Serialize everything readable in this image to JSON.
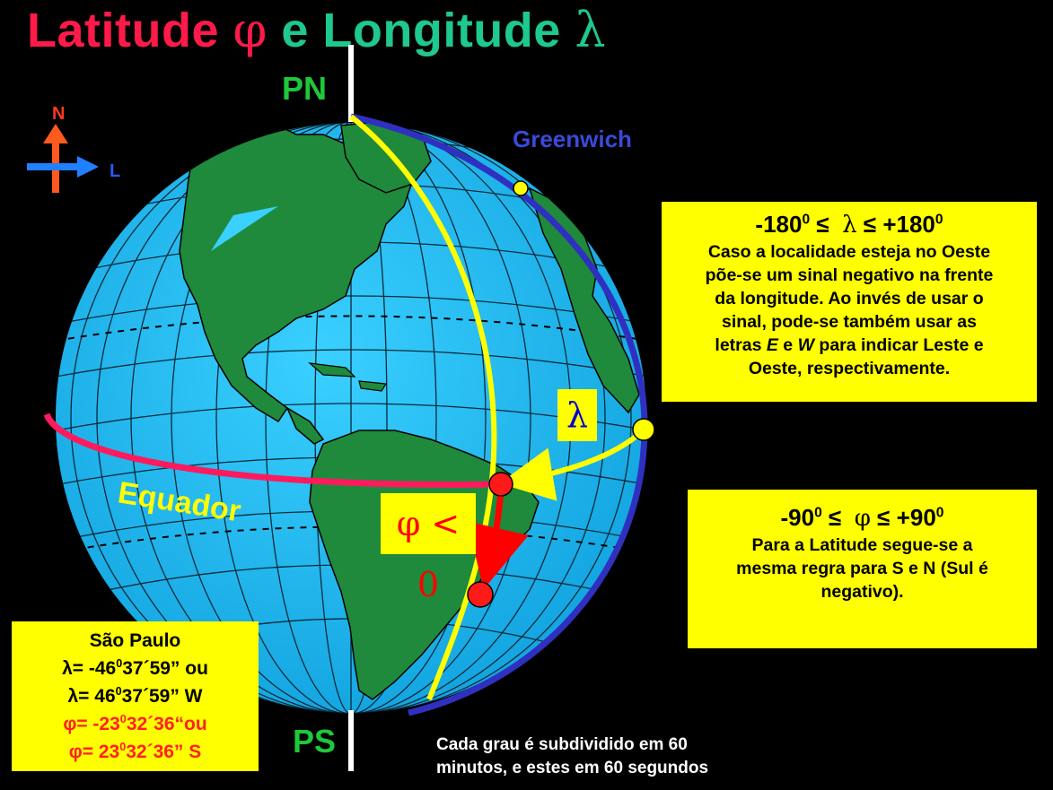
{
  "title": {
    "latitude": "Latitude",
    "phi": "φ",
    "e": " e ",
    "longitude": "Longitude",
    "lambda": "λ"
  },
  "labels": {
    "pn": "PN",
    "ps": "PS",
    "greenwich": "Greenwich",
    "equador": "Equador",
    "north": "N",
    "east": "L"
  },
  "lambda_box": "λ",
  "phi_box": "φ < 0",
  "longitude_box": {
    "range_lower": "-180",
    "range_upper": "+180",
    "range_sup": "0",
    "range_symbol": "λ",
    "line1": "Caso a localidade esteja no Oeste",
    "line2": "põe-se um sinal negativo na frente",
    "line3": "da longitude. Ao invés de usar o",
    "line4": "sinal, pode-se também usar as",
    "line5_pre": "letras ",
    "line5_e": "E",
    "line5_mid": " e ",
    "line5_w": "W",
    "line5_post": " para indicar Leste e",
    "line6": "Oeste, respectivamente."
  },
  "latitude_box": {
    "range_lower": "-90",
    "range_upper": "+90",
    "range_sup": "0",
    "range_symbol": "φ",
    "line1": "Para a Latitude segue-se a",
    "line2": "mesma regra para S e N (Sul é",
    "line3": "negativo)."
  },
  "sao_paulo_box": {
    "city": "São Paulo",
    "lam1_prefix": "λ= -46",
    "lam1_suffix": "37´59” ou",
    "lam2_prefix": "λ= 46",
    "lam2_suffix": "37´59” W",
    "phi1_prefix": "φ= -23",
    "phi1_suffix": "32´36“ou",
    "phi2_prefix": "φ= 23",
    "phi2_suffix": "32´36” S",
    "deg": "0"
  },
  "note": {
    "line1": "Cada grau é subdividido em 60",
    "line2": "minutos, e estes em 60 segundos"
  },
  "colors": {
    "background": "#000000",
    "ocean": "#19b4ee",
    "land": "#1f8a3c",
    "equator": "#ff1a5e",
    "greenwich": "#3030c0",
    "meridian": "#ffff00",
    "latitude_arrow": "#ff0000",
    "highlight_box": "#ffff00",
    "title_latitude": "#ff1a4a",
    "title_longitude": "#1ec890",
    "axis_label": "#1ec83a"
  }
}
